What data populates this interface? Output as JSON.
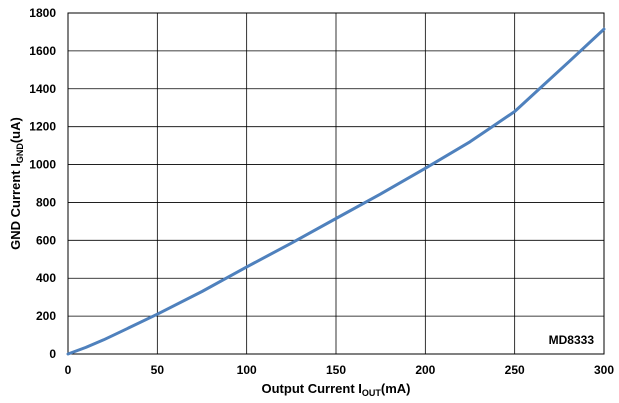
{
  "chart_data": {
    "type": "line",
    "xlabel": {
      "main": "Output Current I",
      "sub": "OUT",
      "tail": "(mA)"
    },
    "ylabel": {
      "main": "GND Current I",
      "sub": "GND",
      "tail": "(uA)"
    },
    "xlim": [
      0,
      300
    ],
    "ylim": [
      0,
      1800
    ],
    "xticks": [
      0,
      50,
      100,
      150,
      200,
      250,
      300
    ],
    "yticks": [
      0,
      200,
      400,
      600,
      800,
      1000,
      1200,
      1400,
      1600,
      1800
    ],
    "grid": true,
    "annotation": "MD8333",
    "series_color": "#4f81bd",
    "series": [
      {
        "x": [
          0,
          10,
          20,
          30,
          50,
          75,
          100,
          125,
          150,
          175,
          200,
          225,
          250,
          265,
          280,
          300
        ],
        "y": [
          0,
          35,
          75,
          120,
          210,
          330,
          460,
          585,
          715,
          845,
          980,
          1120,
          1280,
          1410,
          1540,
          1715
        ]
      }
    ]
  }
}
